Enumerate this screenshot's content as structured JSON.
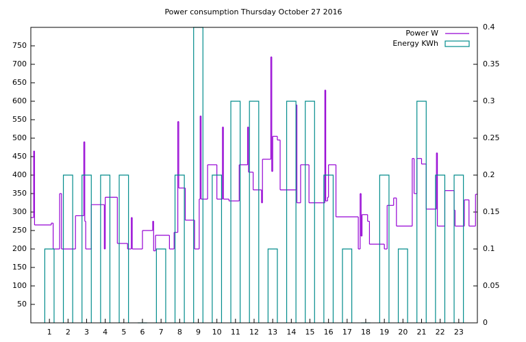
{
  "chart_data": {
    "type": "step",
    "title": "Power consumption Thursday October 27 2016",
    "xlim": [
      0,
      24
    ],
    "xticks": [
      1,
      2,
      3,
      4,
      5,
      6,
      7,
      8,
      9,
      10,
      11,
      12,
      13,
      14,
      15,
      16,
      17,
      18,
      19,
      20,
      21,
      22,
      23
    ],
    "ylim": [
      0,
      800
    ],
    "yticks": [
      50,
      100,
      150,
      200,
      250,
      300,
      350,
      400,
      450,
      500,
      550,
      600,
      650,
      700,
      750
    ],
    "y2lim": [
      0,
      0.4
    ],
    "y2ticks": [
      0,
      0.05,
      0.1,
      0.15,
      0.2,
      0.25,
      0.3,
      0.35,
      0.4
    ],
    "legend": "top-right",
    "series": [
      {
        "name": "Power W",
        "color": "#9400d3",
        "style": "steps",
        "x": [
          0.0,
          0.15,
          0.2,
          1.1,
          1.2,
          1.55,
          1.65,
          2.4,
          2.85,
          2.9,
          2.95,
          3.25,
          3.95,
          4.0,
          4.65,
          5.2,
          5.4,
          5.45,
          6.0,
          6.55,
          6.6,
          6.7,
          7.45,
          7.7,
          7.9,
          7.95,
          8.3,
          8.8,
          9.05,
          9.1,
          9.15,
          9.5,
          10.0,
          10.3,
          10.35,
          10.65,
          11.2,
          11.65,
          11.7,
          11.95,
          12.4,
          12.45,
          12.9,
          12.95,
          13.0,
          13.25,
          13.4,
          14.25,
          14.3,
          14.5,
          14.95,
          15.8,
          15.85,
          15.95,
          16.0,
          16.4,
          17.6,
          17.7,
          17.75,
          17.8,
          18.1,
          18.2,
          19.0,
          19.15,
          19.5,
          19.65,
          20.5,
          20.6,
          20.75,
          21.0,
          21.25,
          21.8,
          21.85,
          22.25,
          22.75,
          22.8,
          23.3,
          23.55,
          23.9
        ],
        "values": [
          285,
          465,
          265,
          270,
          200,
          350,
          200,
          290,
          490,
          275,
          200,
          320,
          200,
          340,
          215,
          200,
          285,
          200,
          250,
          275,
          195,
          237,
          200,
          245,
          545,
          365,
          278,
          200,
          335,
          560,
          335,
          428,
          335,
          530,
          335,
          330,
          428,
          530,
          408,
          360,
          325,
          443,
          720,
          410,
          505,
          495,
          360,
          590,
          325,
          428,
          325,
          630,
          330,
          340,
          428,
          287,
          200,
          350,
          235,
          293,
          275,
          213,
          200,
          318,
          338,
          262,
          445,
          350,
          445,
          430,
          308,
          460,
          262,
          358,
          305,
          262,
          333,
          262,
          348
        ]
      },
      {
        "name": "Energy KWh",
        "color": "#008b8b",
        "style": "boxes",
        "axis": "y2",
        "width": 0.5,
        "x": [
          1,
          2,
          3,
          4,
          5,
          6,
          7,
          8,
          9,
          10,
          11,
          12,
          13,
          14,
          15,
          16,
          17,
          18,
          19,
          20,
          21,
          22,
          23
        ],
        "values": [
          0.1,
          0.2,
          0.2,
          0.2,
          0.2,
          0,
          0.1,
          0.2,
          0.4,
          0.2,
          0.3,
          0.3,
          0.1,
          0.3,
          0.3,
          0.2,
          0.1,
          0,
          0.2,
          0.1,
          0.3,
          0.2,
          0.2
        ]
      }
    ]
  }
}
